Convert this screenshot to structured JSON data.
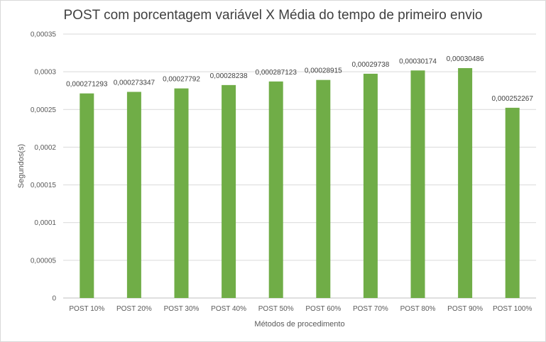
{
  "chart_data": {
    "type": "bar",
    "title": "POST com porcentagem variável X Média do tempo de primeiro envio",
    "xlabel": "Métodos de procedimento",
    "ylabel": "Segundos(s)",
    "ylim": [
      0,
      0.00035
    ],
    "yticks": [
      0,
      5e-05,
      0.0001,
      0.00015,
      0.0002,
      0.00025,
      0.0003,
      0.00035
    ],
    "ytick_labels": [
      "0",
      "0,00005",
      "0,0001",
      "0,00015",
      "0,0002",
      "0,00025",
      "0,0003",
      "0,00035"
    ],
    "grid": true,
    "legend": "none",
    "bar_color": "#70ad47",
    "categories": [
      "POST 10%",
      "POST 20%",
      "POST 30%",
      "POST 40%",
      "POST 50%",
      "POST 60%",
      "POST 70%",
      "POST 80%",
      "POST 90%",
      "POST 100%"
    ],
    "values": [
      0.000271293,
      0.000273347,
      0.00027792,
      0.00028238,
      0.000287123,
      0.00028915,
      0.00029738,
      0.00030174,
      0.00030486,
      0.000252267
    ],
    "data_labels": [
      "0,000271293",
      "0,000273347",
      "0,00027792",
      "0,00028238",
      "0,000287123",
      "0,00028915",
      "0,00029738",
      "0,00030174",
      "0,00030486",
      "0,000252267"
    ]
  }
}
